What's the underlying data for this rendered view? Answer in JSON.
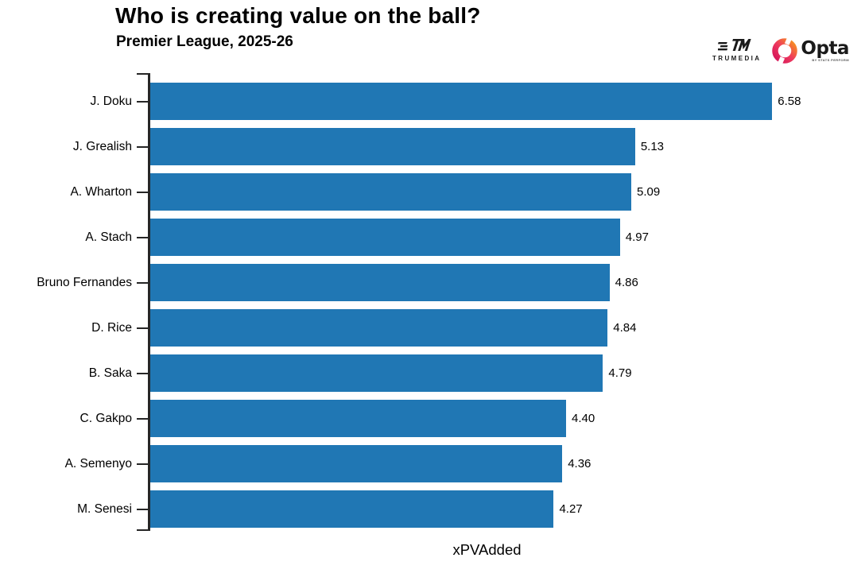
{
  "header": {
    "title": "Who is creating value on the ball?",
    "subtitle": "Premier League, 2025-26"
  },
  "logos": {
    "trumedia_label": "TRUMEDIA",
    "opta_label": "Opta",
    "opta_sublabel": "BY STATS PERFORM"
  },
  "chart_data": {
    "type": "bar",
    "orientation": "horizontal",
    "title": "Who is creating value on the ball?",
    "subtitle": "Premier League, 2025-26",
    "xlabel": "xPVAdded",
    "ylabel": "",
    "categories": [
      "J. Doku",
      "J. Grealish",
      "A. Wharton",
      "A. Stach",
      "Bruno Fernandes",
      "D. Rice",
      "B. Saka",
      "C. Gakpo",
      "A. Semenyo",
      "M. Senesi"
    ],
    "values": [
      6.58,
      5.13,
      5.09,
      4.97,
      4.86,
      4.84,
      4.79,
      4.4,
      4.36,
      4.27
    ],
    "value_labels": [
      "6.58",
      "5.13",
      "5.09",
      "4.97",
      "4.86",
      "4.84",
      "4.79",
      "4.40",
      "4.36",
      "4.27"
    ],
    "xlim": [
      0,
      7.17
    ],
    "bar_color": "#2077b4",
    "axis_color": "#262626",
    "grid": false,
    "legend": null,
    "value_labels_position": "right-of-bar"
  },
  "colors": {
    "bar": "#2077b4",
    "axis": "#262626",
    "background": "#ffffff",
    "opta_gradient_start": "#d4145a",
    "opta_gradient_end": "#f7941e"
  }
}
